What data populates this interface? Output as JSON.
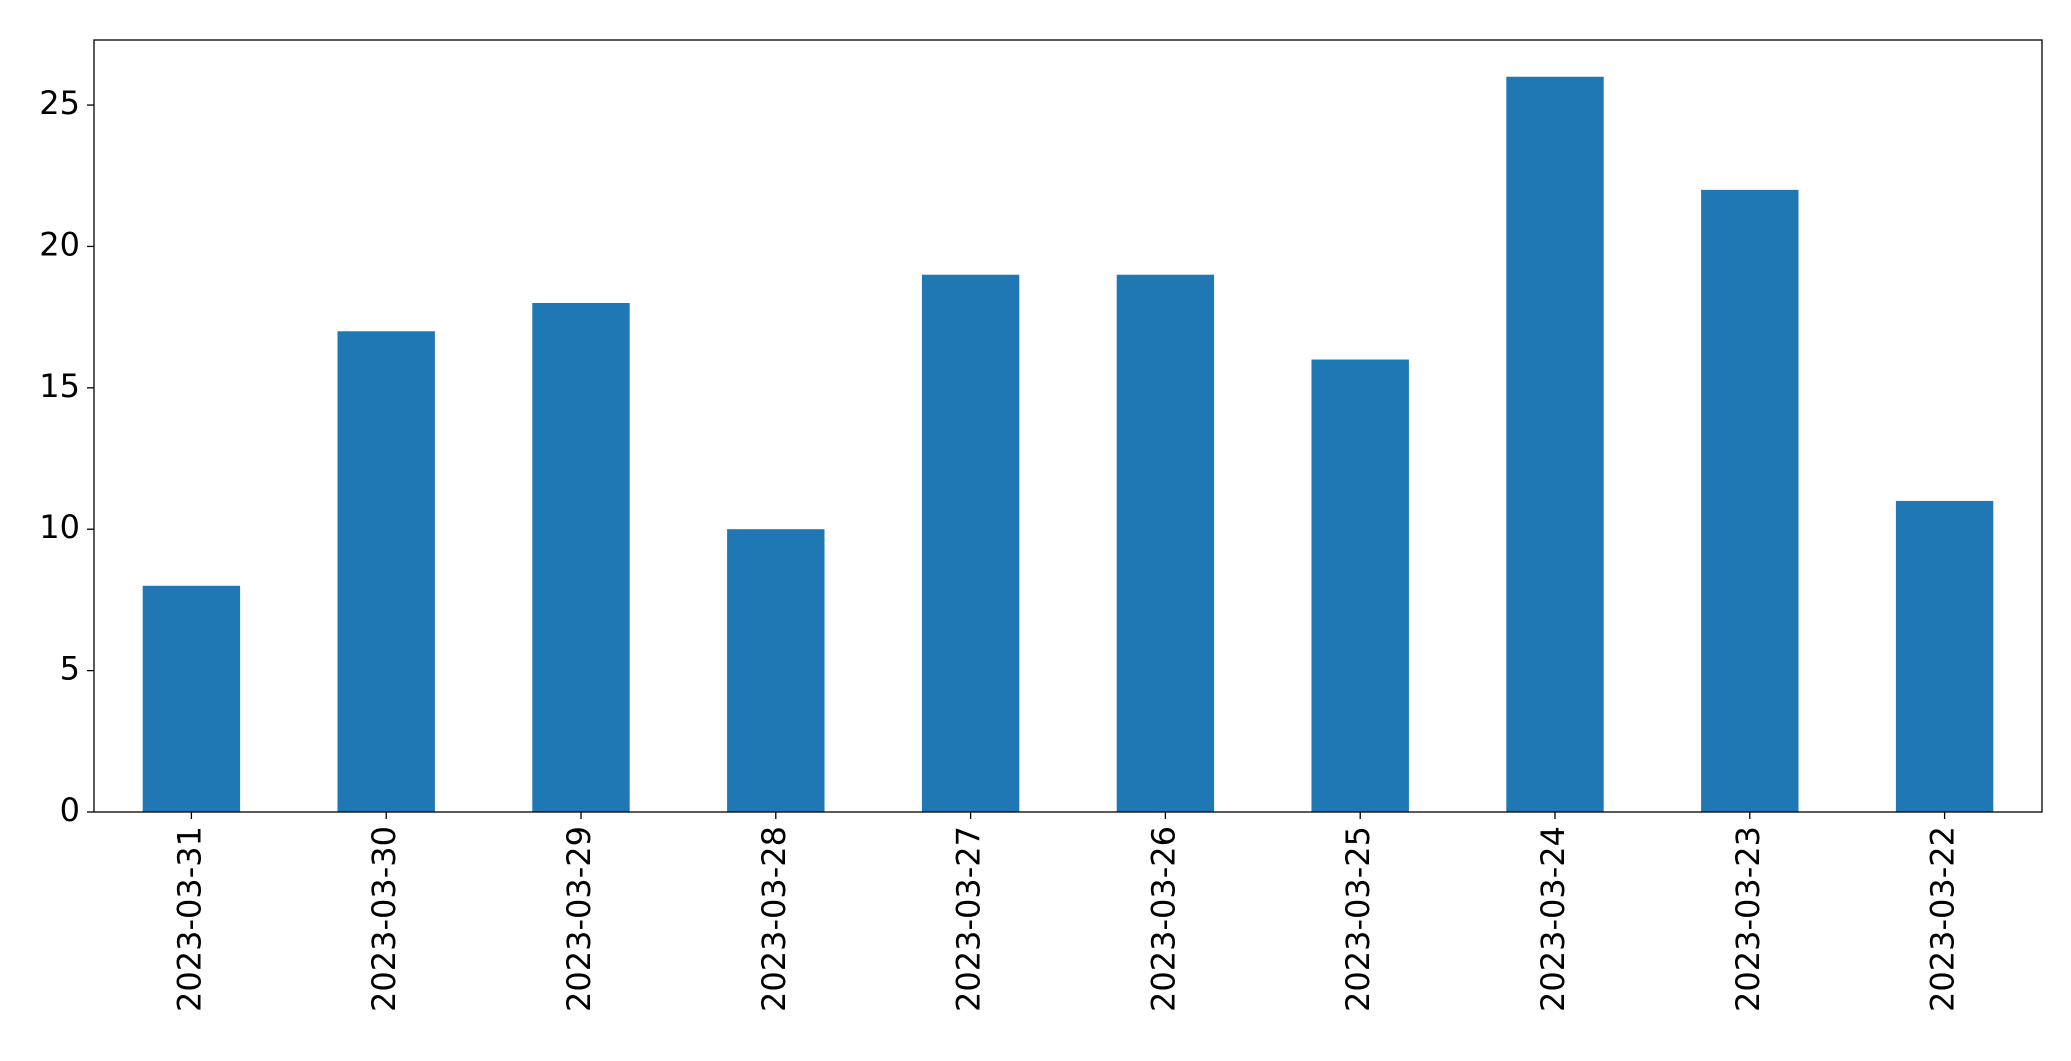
{
  "chart_data": {
    "type": "bar",
    "categories": [
      "2023-03-31",
      "2023-03-30",
      "2023-03-29",
      "2023-03-28",
      "2023-03-27",
      "2023-03-26",
      "2023-03-25",
      "2023-03-24",
      "2023-03-23",
      "2023-03-22"
    ],
    "values": [
      8,
      17,
      18,
      10,
      19,
      19,
      16,
      26,
      22,
      11
    ],
    "color": "#1f77b4",
    "ylim": [
      0,
      27.3
    ],
    "yticks": [
      0,
      5,
      10,
      15,
      20,
      25
    ],
    "grid": false
  }
}
